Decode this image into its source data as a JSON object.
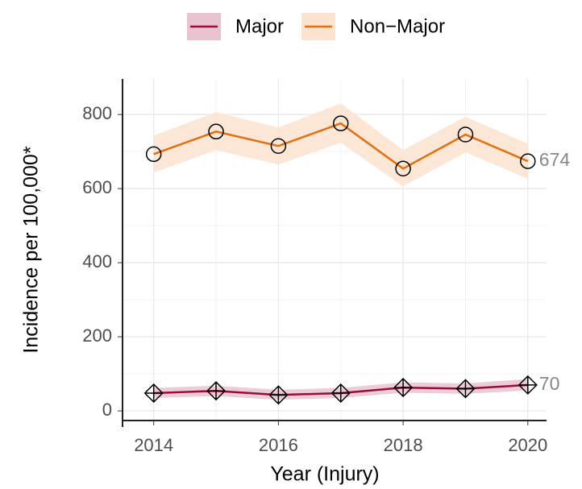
{
  "chart_data": {
    "type": "line",
    "x_label": "Year (Injury)",
    "y_label": "Incidence per 100,000*",
    "x": [
      2014,
      2015,
      2016,
      2017,
      2018,
      2019,
      2020
    ],
    "series": [
      {
        "name": "Major",
        "color": "#9b0b3d",
        "band_color": "#e9c3d0",
        "marker": "diamond-plus",
        "values": [
          48,
          54,
          43,
          48,
          63,
          60,
          70
        ],
        "lower": [
          35,
          40,
          30,
          35,
          49,
          46,
          55
        ],
        "upper": [
          62,
          68,
          57,
          62,
          77,
          74,
          86
        ]
      },
      {
        "name": "Non−Major",
        "color": "#e3700f",
        "band_color": "#fbe3cf",
        "marker": "circle",
        "values": [
          693,
          754,
          715,
          776,
          654,
          746,
          674
        ],
        "lower": [
          643,
          704,
          665,
          724,
          606,
          698,
          627
        ],
        "upper": [
          743,
          806,
          765,
          830,
          704,
          794,
          721
        ]
      }
    ],
    "xlim": [
      2013.5,
      2020.3
    ],
    "ylim": [
      -26,
      896
    ],
    "xticks": [
      2014,
      2016,
      2018,
      2020
    ],
    "yticks": [
      0,
      200,
      400,
      600,
      800
    ],
    "xminor": [
      2015,
      2017,
      2019
    ],
    "yminor": [
      100,
      300,
      500,
      700
    ],
    "grid": true,
    "legend": "top",
    "end_labels": true
  }
}
